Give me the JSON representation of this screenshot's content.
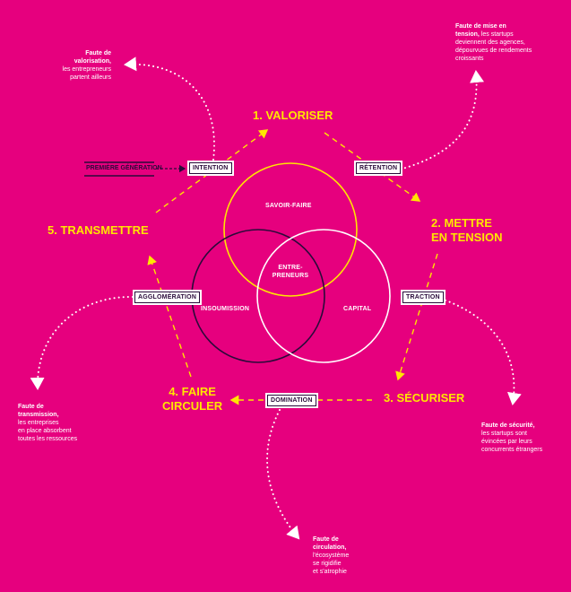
{
  "phases": {
    "valoriser": "1. VALORISER",
    "mettre_line1": "2. METTRE",
    "mettre_line2": "EN TENSION",
    "securiser": "3. SÉCURISER",
    "faire_line1": "4. FAIRE",
    "faire_line2": "CIRCULER",
    "transmettre": "5. TRANSMETTRE"
  },
  "boxes": {
    "intention": "INTENTION",
    "retention": "RÉTENTION",
    "traction": "TRACTION",
    "domination": "DOMINATION",
    "agglomeration": "AGGLOMÉRATION",
    "premiere_generation": "PREMIÈRE GÉNÉRATION"
  },
  "circles": {
    "savoir_faire": "SAVOIR-FAIRE",
    "entrepreneurs_line1": "ENTRE-",
    "entrepreneurs_line2": "PRENEURS",
    "insoumission": "INSOUMISSION",
    "capital": "CAPITAL"
  },
  "notes": {
    "valorisation": {
      "title_line1": "Faute de",
      "title_line2": "valorisation,",
      "line1": "les entrepreneurs",
      "line2": "partent ailleurs"
    },
    "tension": {
      "title_line1": "Faute de mise en",
      "title_line2": "tension,",
      "line1": "les startups",
      "line2": "deviennent des agences,",
      "line3": "dépourvues de rendements",
      "line4": "croissants"
    },
    "securite": {
      "title": "Faute de sécurité,",
      "line1": "les startups sont",
      "line2": "évincées par leurs",
      "line3": "concurrents étrangers"
    },
    "circulation": {
      "title_line1": "Faute de",
      "title_line2": "circulation,",
      "line1": "l'écosystème",
      "line2": "se rigidifie",
      "line3": "et s'atrophie"
    },
    "transmission": {
      "title_line1": "Faute de",
      "title_line2": "transmission,",
      "line1": "les entreprises",
      "line2": "en place absorbent",
      "line3": "toutes les ressources"
    }
  },
  "colors": {
    "background": "#e6007e",
    "accent_yellow": "#ffe600",
    "dark": "#2a0a3a",
    "white": "#ffffff"
  }
}
